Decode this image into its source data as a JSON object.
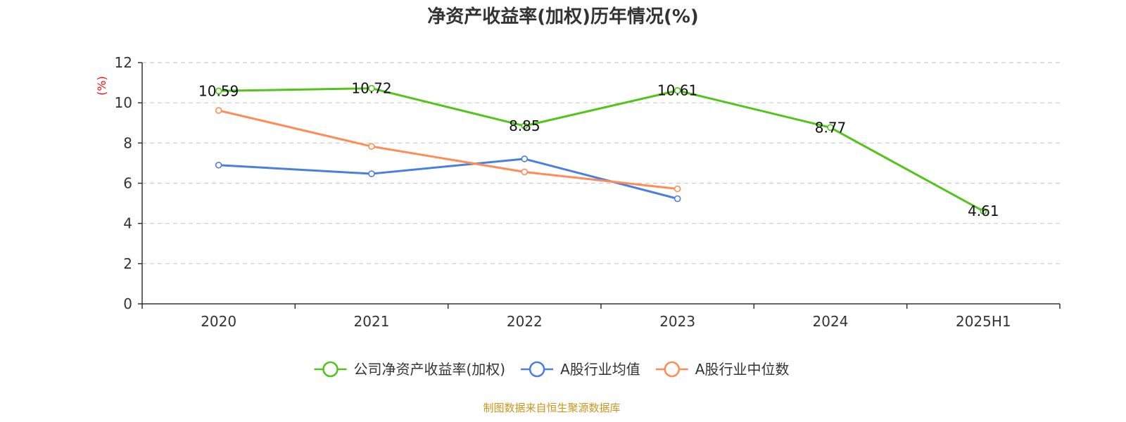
{
  "chart_data": {
    "type": "line",
    "title": "净资产收益率(加权)历年情况(%)",
    "ylabel": "(%)",
    "xlabel": "",
    "categories": [
      "2020",
      "2021",
      "2022",
      "2023",
      "2024",
      "2025H1"
    ],
    "ylim": [
      0,
      12
    ],
    "yticks": [
      0,
      2,
      4,
      6,
      8,
      10,
      12
    ],
    "grid": true,
    "legend_position": "bottom",
    "series": [
      {
        "name": "公司净资产收益率(加权)",
        "color": "#52c41a",
        "values": [
          10.59,
          10.72,
          8.85,
          10.61,
          8.77,
          4.61
        ],
        "labels": [
          "10.59",
          "10.72",
          "8.85",
          "10.61",
          "8.77",
          "4.61"
        ],
        "show_labels": true
      },
      {
        "name": "A股行业均值",
        "color": "#4a7fe0",
        "values": [
          6.9,
          6.47,
          7.21,
          5.23,
          null,
          null
        ],
        "show_labels": false
      },
      {
        "name": "A股行业中位数",
        "color": "#ff8c55",
        "values": [
          9.62,
          7.83,
          6.56,
          5.72,
          null,
          null
        ],
        "show_labels": false
      }
    ]
  },
  "footer": {
    "source": "制图数据来自恒生聚源数据库"
  }
}
